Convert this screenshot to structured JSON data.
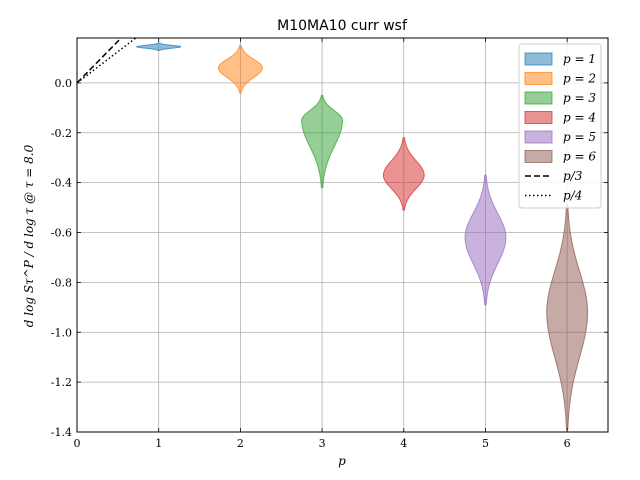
{
  "chart_data": {
    "type": "violin",
    "title": "M10MA10 curr wsf",
    "xlabel": "p",
    "ylabel": "d log Sτ^P / d log τ @ τ = 8.0",
    "xlim": [
      0,
      6.5
    ],
    "ylim": [
      -1.4,
      0.18
    ],
    "xticks": [
      0,
      1,
      2,
      3,
      4,
      5,
      6
    ],
    "yticks": [
      0.0,
      -0.2,
      -0.4,
      -0.6,
      -0.8,
      -1.0,
      -1.2,
      -1.4
    ],
    "ytick_labels": [
      "0.0",
      "-0.2",
      "-0.4",
      "-0.6",
      "-0.8",
      "-1.0",
      "-1.2",
      "-1.4"
    ],
    "grid": true,
    "legend_position": "top-right",
    "series": [
      {
        "name": "p = 1",
        "x": 1,
        "center": 0.145,
        "min": 0.13,
        "max": 0.16,
        "halfwidth": 0.27,
        "color": "#1f77b4"
      },
      {
        "name": "p = 2",
        "x": 2,
        "center": 0.06,
        "min": -0.04,
        "max": 0.15,
        "halfwidth": 0.27,
        "color": "#ff7f0e"
      },
      {
        "name": "p = 3",
        "x": 3,
        "center": -0.15,
        "min": -0.42,
        "max": -0.05,
        "halfwidth": 0.25,
        "color": "#2ca02c"
      },
      {
        "name": "p = 4",
        "x": 4,
        "center": -0.37,
        "min": -0.51,
        "max": -0.22,
        "halfwidth": 0.25,
        "color": "#d62728"
      },
      {
        "name": "p = 5",
        "x": 5,
        "center": -0.62,
        "min": -0.89,
        "max": -0.37,
        "halfwidth": 0.25,
        "color": "#9467bd"
      },
      {
        "name": "p = 6",
        "x": 6,
        "center": -0.92,
        "min": -1.39,
        "max": -0.49,
        "halfwidth": 0.25,
        "color": "#8c564b"
      }
    ],
    "reference_lines": [
      {
        "name": "p/3",
        "style": "dashed",
        "slope": 0.3333
      },
      {
        "name": "p/4",
        "style": "dotted",
        "slope": 0.25
      }
    ]
  }
}
